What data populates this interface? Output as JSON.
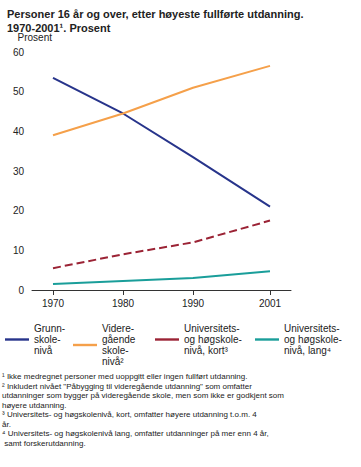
{
  "chart_data": {
    "type": "line",
    "title": "Personer 16 år og over, etter høyeste fullførte utdanning. 1970-2001¹. Prosent",
    "y_label": "Prosent",
    "x": [
      1970,
      1980,
      1990,
      2001
    ],
    "xlim": [
      1967,
      2004
    ],
    "xticks": [
      1970,
      1980,
      1990,
      2001
    ],
    "ylim": [
      0,
      60
    ],
    "yticks": [
      0,
      10,
      20,
      30,
      40,
      50,
      60
    ],
    "grid": false,
    "legend": "bottom",
    "series": [
      {
        "name": "Grunn-\nskole-\nnivå",
        "color": "#27348b",
        "line_style": "solid",
        "values": [
          53.5,
          44.5,
          33.5,
          21
        ]
      },
      {
        "name": "Videre-\ngående\nskole-\nnivå²",
        "color": "#f5a04a",
        "line_style": "solid",
        "values": [
          39,
          44.5,
          51,
          56.5
        ]
      },
      {
        "name": "Universitets-\nog høgskole-\nnivå, kort³",
        "color": "#9b2335",
        "line_style": "dashed",
        "values": [
          5.5,
          9,
          12,
          17.5
        ]
      },
      {
        "name": "Universitets-\nog høgskole-\nnivå, lang⁴",
        "color": "#1a9e9a",
        "line_style": "solid",
        "values": [
          1.5,
          2.3,
          3,
          4.7
        ]
      }
    ],
    "annotations": [
      "¹ Ikke medregnet personer med uoppgitt eller ingen fullført utdanning.",
      "² Inkludert nivået \"Påbygging til videregående utdanning\" som omfatter utdanninger som bygger på videregående skole, men som ikke er godkjent som høyere utdanning.",
      "³ Universitets- og høgskolenivå, kort, omfatter høyere utdanning t.o.m. 4 år.",
      "⁴ Universitets- og høgskolenivå lang, omfatter utdanninger på mer enn 4 år, samt forskerutdanning."
    ]
  }
}
